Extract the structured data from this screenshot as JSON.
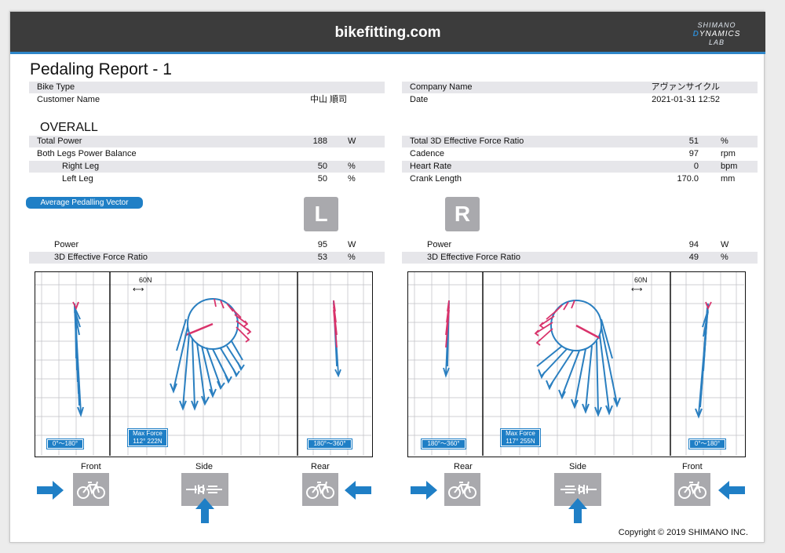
{
  "header": {
    "site": "bikefitting.com",
    "logo_top": "SHIMANO",
    "logo_mid_accent": "D",
    "logo_mid": "YNAMICS",
    "logo_bottom": "LAB"
  },
  "report": {
    "title": "Pedaling Report - 1",
    "bike_type_label": "Bike Type",
    "bike_type_value": "",
    "customer_label": "Customer Name",
    "customer_value": "中山 順司",
    "company_label": "Company Name",
    "company_value": "アヴァンサイクル",
    "date_label": "Date",
    "date_value": "2021-01-31 12:52"
  },
  "overall": {
    "heading": "OVERALL",
    "total_power": {
      "label": "Total Power",
      "value": "188",
      "unit": "W"
    },
    "balance_label": "Both Legs Power Balance",
    "right_leg": {
      "label": "Right Leg",
      "value": "50",
      "unit": "%"
    },
    "left_leg": {
      "label": "Left Leg",
      "value": "50",
      "unit": "%"
    },
    "total_3d": {
      "label": "Total 3D Effective Force Ratio",
      "value": "51",
      "unit": "%"
    },
    "cadence": {
      "label": "Cadence",
      "value": "97",
      "unit": "rpm"
    },
    "heart_rate": {
      "label": "Heart Rate",
      "value": "0",
      "unit": "bpm"
    },
    "crank_length": {
      "label": "Crank Length",
      "value": "170.0",
      "unit": "mm"
    }
  },
  "vector_pill": "Average Pedalling Vector",
  "left": {
    "letter": "L",
    "power": {
      "label": "Power",
      "value": "95",
      "unit": "W"
    },
    "efr": {
      "label": "3D Effective Force Ratio",
      "value": "53",
      "unit": "%"
    },
    "scale": "60N",
    "front_range": "0°～180°",
    "max_force_label": "Max Force",
    "max_force_value": "112° 222N",
    "rear_range": "180°～360°",
    "views": [
      "Front",
      "Side",
      "Rear"
    ]
  },
  "right": {
    "letter": "R",
    "power": {
      "label": "Power",
      "value": "94",
      "unit": "W"
    },
    "efr": {
      "label": "3D Effective Force Ratio",
      "value": "49",
      "unit": "%"
    },
    "scale": "60N",
    "rear_range": "180°～360°",
    "max_force_label": "Max Force",
    "max_force_value": "117° 255N",
    "front_range": "0°～180°",
    "views": [
      "Rear",
      "Side",
      "Front"
    ]
  },
  "copyright": "Copyright © 2019 SHIMANO INC.",
  "colors": {
    "accent": "#1f7fc6",
    "vector": "#2a7fc0",
    "negative": "#d9336b",
    "grid": "#bfbfc4"
  }
}
